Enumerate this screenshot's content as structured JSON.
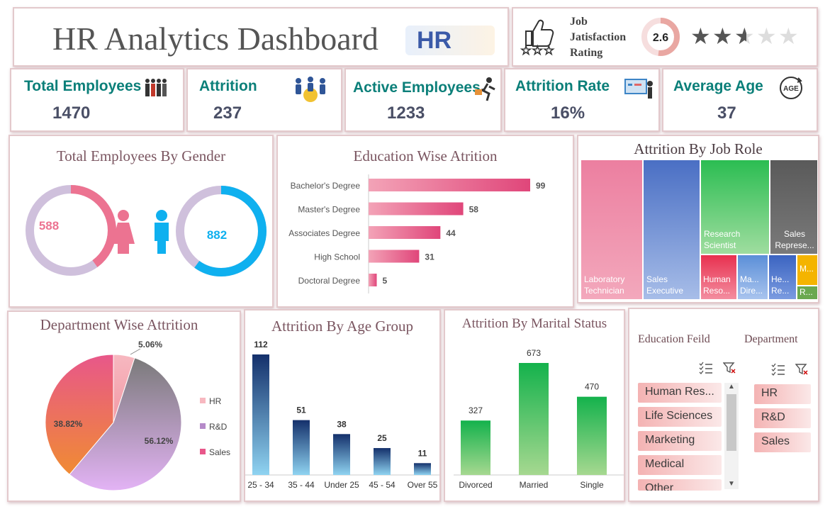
{
  "header": {
    "title": "HR Analytics Dashboard",
    "logo_text": "HR"
  },
  "rating": {
    "label_lines": [
      "Job",
      "Jatisfaction",
      "Rating"
    ],
    "value": "2.6",
    "stars_value": 2.6,
    "stars_max": 5
  },
  "kpis": [
    {
      "label": "Total Employees",
      "value": "1470",
      "icon": "people-group-icon"
    },
    {
      "label": "Attrition",
      "value": "237",
      "icon": "team-leaving-icon"
    },
    {
      "label": "Active Employees",
      "value": "1233",
      "icon": "runner-with-briefcase-icon"
    },
    {
      "label": "Attrition Rate",
      "value": "16%",
      "icon": "presentation-board-icon"
    },
    {
      "label": "Average Age",
      "value": "37",
      "icon": "age-cycle-icon"
    }
  ],
  "colors": {
    "female": "#ec7391",
    "male": "#0fb0ef",
    "ring_track": "#cfc0dc",
    "teal": "#0b7f79",
    "pink_bar": "#e0467a",
    "navy_bar": "#1d3b7a",
    "green_bar": "#14b24c"
  },
  "chart_data": [
    {
      "type": "donut",
      "title": "Total Employees By Gender",
      "series": [
        {
          "name": "Female",
          "values": [
            588
          ]
        },
        {
          "name": "Male",
          "values": [
            882
          ]
        }
      ],
      "total": 1470
    },
    {
      "type": "bar",
      "orientation": "horizontal",
      "title": "Education Wise Atrition",
      "categories": [
        "Bachelor's Degree",
        "Master's Degree",
        "Associates Degree",
        "High School",
        "Doctoral Degree"
      ],
      "values": [
        99,
        58,
        44,
        31,
        5
      ]
    },
    {
      "type": "treemap",
      "title": "Attrition By Job Role",
      "labels": [
        "Laboratory Technician",
        "Sales Executive",
        "Research Scientist",
        "Sales Represe...",
        "Human Reso...",
        "Ma... Dire...",
        "He... Re...",
        "M...",
        "R..."
      ]
    },
    {
      "type": "pie",
      "title": "Department Wise Attrition",
      "categories": [
        "HR",
        "R&D",
        "Sales"
      ],
      "values": [
        5.06,
        56.12,
        38.82
      ],
      "value_labels": [
        "5.06%",
        "56.12%",
        "38.82%"
      ],
      "legend": "right"
    },
    {
      "type": "bar",
      "title": "Attrition By Age Group",
      "categories": [
        "25 - 34",
        "35 - 44",
        "Under 25",
        "45 - 54",
        "Over 55"
      ],
      "values": [
        112,
        51,
        38,
        25,
        11
      ]
    },
    {
      "type": "bar",
      "title": "Attrition By Marital Status",
      "categories": [
        "Divorced",
        "Married",
        "Single"
      ],
      "values": [
        327,
        673,
        470
      ]
    }
  ],
  "slicers": {
    "education": {
      "title": "Education Feild",
      "items": [
        "Human Res...",
        "Life Sciences",
        "Marketing",
        "Medical",
        "Other"
      ]
    },
    "department": {
      "title": "Department",
      "items": [
        "HR",
        "R&D",
        "Sales"
      ]
    }
  }
}
